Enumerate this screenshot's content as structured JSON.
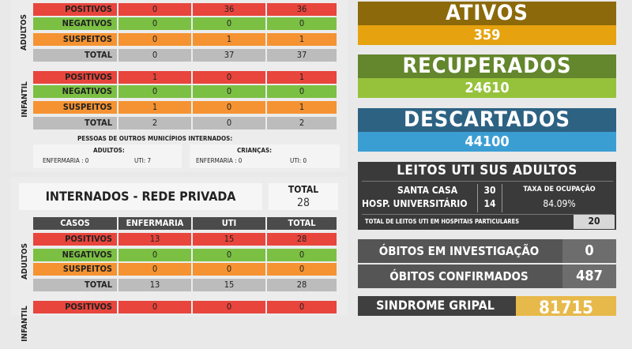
{
  "publicos": {
    "adultos": {
      "label": "ADULTOS",
      "rows": [
        {
          "label": "POSITIVOS",
          "enf": "0",
          "uti": "36",
          "total": "36"
        },
        {
          "label": "NEGATIVOS",
          "enf": "0",
          "uti": "0",
          "total": "0"
        },
        {
          "label": "SUSPEITOS",
          "enf": "0",
          "uti": "1",
          "total": "1"
        },
        {
          "label": "TOTAL",
          "enf": "0",
          "uti": "37",
          "total": "37"
        }
      ]
    },
    "infantil": {
      "label": "INFANTIL",
      "rows": [
        {
          "label": "POSITIVOS",
          "enf": "1",
          "uti": "0",
          "total": "1"
        },
        {
          "label": "NEGATIVOS",
          "enf": "0",
          "uti": "0",
          "total": "0"
        },
        {
          "label": "SUSPEITOS",
          "enf": "1",
          "uti": "0",
          "total": "1"
        },
        {
          "label": "TOTAL",
          "enf": "2",
          "uti": "0",
          "total": "2"
        }
      ]
    },
    "outros": {
      "title": "PESSOAS DE OUTROS MUNICÍPIOS INTERNADOS:",
      "adultos_label": "ADULTOS:",
      "adultos_enf": "ENFERMARIA : 0",
      "adultos_uti": "UTI: 7",
      "criancas_label": "CRIANÇAS:",
      "criancas_enf": "ENFERMARIA : 0",
      "criancas_uti": "UTI: 0"
    }
  },
  "privada": {
    "title": "INTERNADOS - REDE PRIVADA",
    "total_label": "TOTAL",
    "total_value": "28",
    "headers": [
      "CASOS",
      "ENFERMARIA",
      "UTI",
      "TOTAL"
    ],
    "adultos": {
      "label": "ADULTOS",
      "rows": [
        {
          "label": "POSITIVOS",
          "enf": "13",
          "uti": "15",
          "total": "28"
        },
        {
          "label": "NEGATIVOS",
          "enf": "0",
          "uti": "0",
          "total": "0"
        },
        {
          "label": "SUSPEITOS",
          "enf": "0",
          "uti": "0",
          "total": "0"
        },
        {
          "label": "TOTAL",
          "enf": "13",
          "uti": "15",
          "total": "28"
        }
      ]
    },
    "infantil": {
      "label": "INFANTIL",
      "rows": [
        {
          "label": "POSITIVOS",
          "enf": "0",
          "uti": "0",
          "total": "0"
        }
      ]
    }
  },
  "ativos": {
    "title": "ATIVOS",
    "value": "359"
  },
  "recuperados": {
    "title": "RECUPERADOS",
    "value": "24610"
  },
  "descartados": {
    "title": "DESCARTADOS",
    "value": "44100"
  },
  "leitos": {
    "title": "LEITOS UTI SUS ADULTOS",
    "santa_casa_label": "SANTA CASA",
    "santa_casa_value": "30",
    "hosp_label": "HOSP. UNIVERSITÁRIO",
    "hosp_value": "14",
    "taxa_label": "TAXA DE OCUPAÇÃO",
    "taxa_value": "84.09%",
    "particulares_label": "TOTAL DE LEITOS UTI EM HOSPITAIS PARTICULARES",
    "particulares_value": "20"
  },
  "obitos_investigacao": {
    "label": "ÓBITOS EM INVESTIGAÇÃO",
    "value": "0"
  },
  "obitos_confirmados": {
    "label": "ÓBITOS CONFIRMADOS",
    "value": "487"
  },
  "sindrome": {
    "label": "SINDROME GRIPAL",
    "value": "81715"
  },
  "colors": {
    "positivo": "#e8453d",
    "negativo": "#7bc043",
    "suspeito": "#f59332",
    "total": "#bcbcbc",
    "ativos_dark": "#8c6a0b",
    "ativos_light": "#e6a20f",
    "recuperados_dark": "#64862c",
    "recuperados_light": "#96c23b",
    "descartados_dark": "#2d6283",
    "descartados_light": "#3b9ed3",
    "leitos": "#3a3a3a",
    "obitos": "#555555",
    "sindrome": "#e7b94a"
  }
}
